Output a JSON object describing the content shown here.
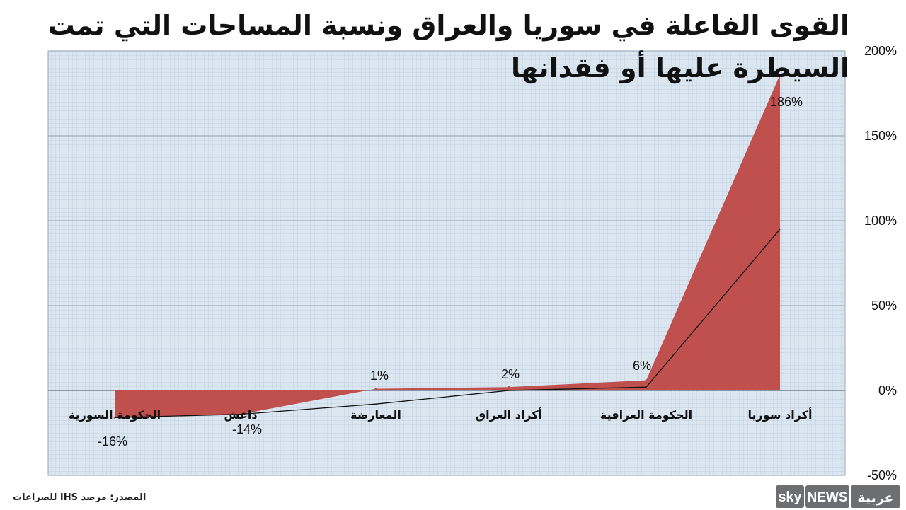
{
  "chart_data": {
    "type": "area",
    "title": "القوى الفاعلة في سوريا والعراق ونسبة المساحات التي تمت السيطرة عليها أو فقدانها",
    "categories": [
      "الحكومة السورية",
      "داعش",
      "المعارضة",
      "أكراد العراق",
      "الحكومة  العراقية",
      "أكراد سوريا"
    ],
    "series": [
      {
        "values": [
          -16,
          -14,
          1,
          2,
          6,
          186
        ]
      }
    ],
    "value_labels": [
      "-16%",
      "-14%",
      "1%",
      "2%",
      "6%",
      "186%"
    ],
    "trendline": [
      -16,
      -14,
      -8,
      0,
      2,
      95
    ],
    "y_ticks": [
      {
        "value": 200,
        "label": "200%"
      },
      {
        "value": 150,
        "label": "150%"
      },
      {
        "value": 100,
        "label": "100%"
      },
      {
        "value": 50,
        "label": "50%"
      },
      {
        "value": 0,
        "label": "0%"
      },
      {
        "value": -50,
        "label": "-50%"
      }
    ],
    "ylim": [
      -50,
      200
    ],
    "y_axis_position": "right",
    "grid": true,
    "legend": "none",
    "colors": {
      "fill": "#c0504d",
      "plot_bg": "#dce6f1",
      "grid_fine": "#b9cde0",
      "grid_major": "#8b9fb3",
      "trendline": "#111111"
    }
  },
  "source_note": "المصدر: مرصد IHS  للصراعات",
  "logo": {
    "part1": "sky",
    "part2": "NEWS",
    "part3": "عربية",
    "colors": {
      "box": "#6d6e71",
      "text": "#ffffff"
    }
  }
}
